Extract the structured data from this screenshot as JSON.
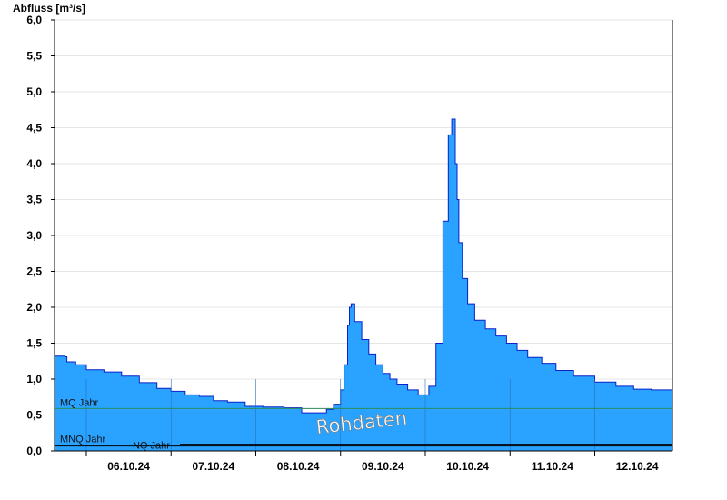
{
  "chart_data": {
    "type": "area",
    "ylabel": "Abfluss [m³/s]",
    "ylim": [
      0,
      6.0
    ],
    "y_ticks": [
      "0,0",
      "0,5",
      "1,0",
      "1,5",
      "2,0",
      "2,5",
      "3,0",
      "3,5",
      "4,0",
      "4,5",
      "5,0",
      "5,5",
      "6,0"
    ],
    "x_start": "2024-10-05T15:00",
    "x_end": "2024-10-12T22:00",
    "x_ticks": [
      "06.10.24",
      "07.10.24",
      "08.10.24",
      "09.10.24",
      "10.10.24",
      "11.10.24",
      "12.10.24"
    ],
    "grid": "horizontal",
    "colors": {
      "fill": "#29a3ff",
      "line": "#0a20c8",
      "mq": "#2e8b57",
      "mnq": "#000000",
      "nq": "#000000"
    },
    "series": [
      {
        "x": [
          "2024-10-05T15:00",
          "2024-10-05T18:00",
          "2024-10-05T18:30",
          "2024-10-05T21:00",
          "2024-10-06T00:00",
          "2024-10-06T05:00",
          "2024-10-06T10:00",
          "2024-10-06T15:00",
          "2024-10-06T20:00",
          "2024-10-07T00:00",
          "2024-10-07T04:00",
          "2024-10-07T08:00",
          "2024-10-07T12:00",
          "2024-10-07T16:00",
          "2024-10-07T21:00",
          "2024-10-08T02:00",
          "2024-10-08T08:00",
          "2024-10-08T13:00",
          "2024-10-08T18:00",
          "2024-10-08T20:00",
          "2024-10-08T22:00",
          "2024-10-09T00:00",
          "2024-10-09T01:00",
          "2024-10-09T02:00",
          "2024-10-09T02:30",
          "2024-10-09T03:00",
          "2024-10-09T04:00",
          "2024-10-09T06:00",
          "2024-10-09T08:00",
          "2024-10-09T10:00",
          "2024-10-09T12:00",
          "2024-10-09T14:00",
          "2024-10-09T16:00",
          "2024-10-09T19:00",
          "2024-10-09T22:00",
          "2024-10-10T01:00",
          "2024-10-10T03:00",
          "2024-10-10T05:00",
          "2024-10-10T06:30",
          "2024-10-10T07:30",
          "2024-10-10T08:30",
          "2024-10-10T09:00",
          "2024-10-10T09:30",
          "2024-10-10T10:30",
          "2024-10-10T12:00",
          "2024-10-10T14:00",
          "2024-10-10T17:00",
          "2024-10-10T20:00",
          "2024-10-10T23:00",
          "2024-10-11T02:00",
          "2024-10-11T05:00",
          "2024-10-11T09:00",
          "2024-10-11T13:00",
          "2024-10-11T18:00",
          "2024-10-12T00:00",
          "2024-10-12T06:00",
          "2024-10-12T11:00",
          "2024-10-12T16:00",
          "2024-10-12T21:00",
          "2024-10-12T22:00"
        ],
        "values": [
          1.32,
          1.31,
          1.24,
          1.2,
          1.13,
          1.1,
          1.04,
          0.95,
          0.87,
          0.83,
          0.78,
          0.76,
          0.7,
          0.68,
          0.62,
          0.61,
          0.6,
          0.53,
          0.53,
          0.58,
          0.65,
          0.85,
          1.2,
          1.75,
          2.0,
          2.05,
          1.8,
          1.55,
          1.35,
          1.2,
          1.08,
          1.0,
          0.93,
          0.85,
          0.78,
          0.9,
          1.5,
          3.2,
          4.4,
          4.62,
          4.0,
          3.5,
          2.9,
          2.4,
          2.05,
          1.82,
          1.7,
          1.6,
          1.5,
          1.4,
          1.3,
          1.22,
          1.12,
          1.04,
          0.96,
          0.9,
          0.86,
          0.85,
          0.85,
          0.78
        ]
      }
    ],
    "reference_lines": [
      {
        "label": "MQ Jahr",
        "value": 0.59
      },
      {
        "label": "MNQ Jahr",
        "value": 0.08
      },
      {
        "label": "NQ Jahr",
        "value": 0.08
      }
    ],
    "watermark": "Rohdaten"
  }
}
